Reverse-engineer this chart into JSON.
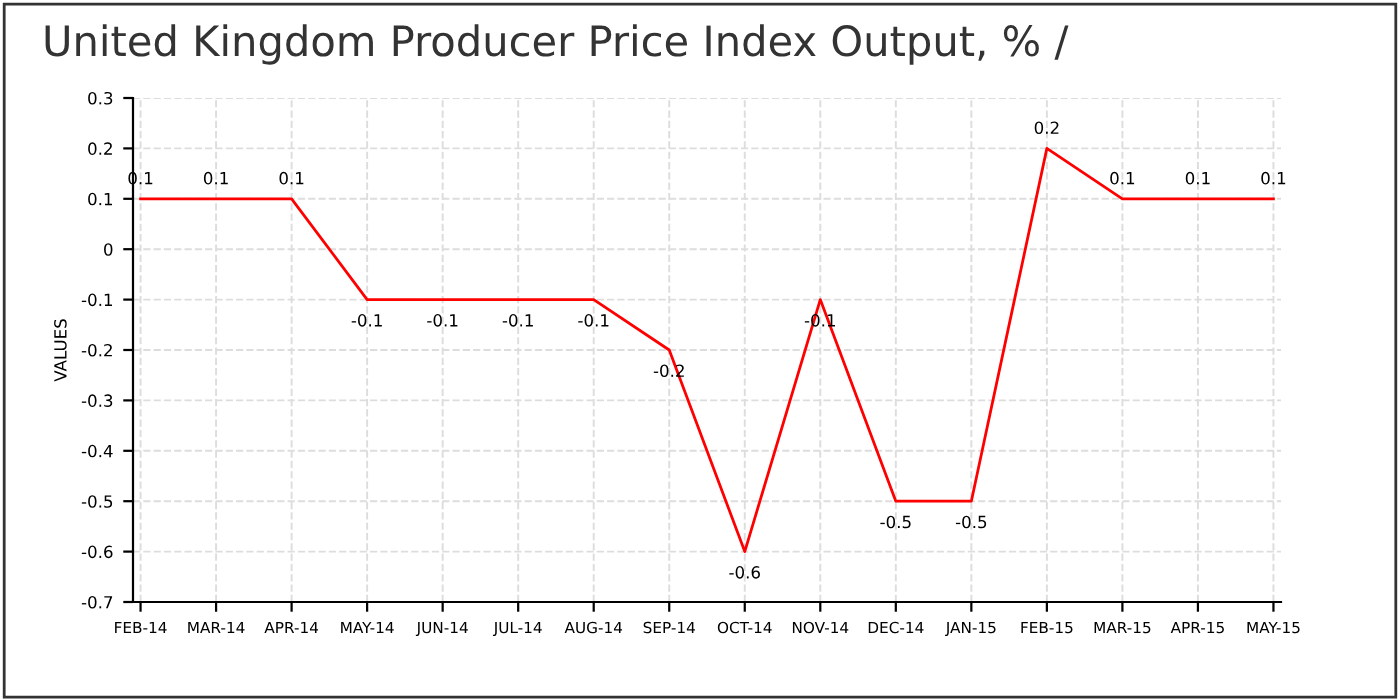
{
  "chart_data": {
    "type": "line",
    "title": "United Kingdom Producer Price Index Output, % /",
    "ylabel": "VALUES",
    "categories": [
      "FEB-14",
      "MAR-14",
      "APR-14",
      "MAY-14",
      "JUN-14",
      "JUL-14",
      "AUG-14",
      "SEP-14",
      "OCT-14",
      "NOV-14",
      "DEC-14",
      "JAN-15",
      "FEB-15",
      "MAR-15",
      "APR-15",
      "MAY-15"
    ],
    "series": [
      {
        "color": "#ff0000",
        "values": [
          0.1,
          0.1,
          0.1,
          -0.1,
          -0.1,
          -0.1,
          -0.1,
          -0.2,
          -0.6,
          -0.1,
          -0.5,
          -0.5,
          0.2,
          0.1,
          0.1,
          0.1
        ]
      }
    ],
    "ylim": [
      -0.7,
      0.3
    ],
    "yticks": [
      -0.7,
      -0.6,
      -0.5,
      -0.4,
      -0.3,
      -0.2,
      -0.1,
      0,
      0.1,
      0.2,
      0.3
    ],
    "grid": true,
    "data_labels": true,
    "marker": "none",
    "line_style": "solid",
    "legend": false
  }
}
